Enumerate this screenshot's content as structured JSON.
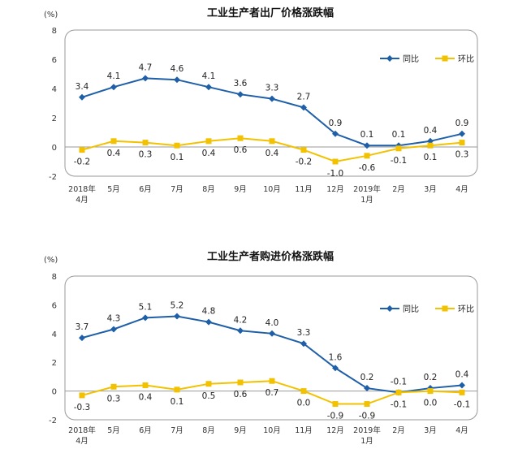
{
  "charts": [
    {
      "type": "line",
      "title": "工业生产者出厂价格涨跌幅",
      "unit": "(%)",
      "ylim": [
        -2,
        8
      ],
      "yticks": [
        -2,
        0,
        2,
        4,
        6,
        8
      ],
      "grid": false,
      "legend_position": "top-right",
      "categories": [
        "2018年\n4月",
        "5月",
        "6月",
        "7月",
        "8月",
        "9月",
        "10月",
        "11月",
        "12月",
        "2019年\n1月",
        "2月",
        "3月",
        "4月"
      ],
      "series": [
        {
          "name": "同比",
          "color": "#1f5fa8",
          "marker": "diamond",
          "values": [
            3.4,
            4.1,
            4.7,
            4.6,
            4.1,
            3.6,
            3.3,
            2.7,
            0.9,
            0.1,
            0.1,
            0.4,
            0.9
          ],
          "labels": [
            "3.4",
            "4.1",
            "4.7",
            "4.6",
            "4.1",
            "3.6",
            "3.3",
            "2.7",
            "0.9",
            "0.1",
            "0.1",
            "0.4",
            "0.9"
          ]
        },
        {
          "name": "环比",
          "color": "#f2c200",
          "marker": "square",
          "values": [
            -0.2,
            0.4,
            0.3,
            0.1,
            0.4,
            0.6,
            0.4,
            -0.2,
            -1.0,
            -0.6,
            -0.1,
            0.1,
            0.3
          ],
          "labels": [
            "-0.2",
            "0.4",
            "0.3",
            "0.1",
            "0.4",
            "0.6",
            "0.4",
            "-0.2",
            "-1.0",
            "-0.6",
            "-0.1",
            "0.1",
            "0.3"
          ]
        }
      ]
    },
    {
      "type": "line",
      "title": "工业生产者购进价格涨跌幅",
      "unit": "(%)",
      "ylim": [
        -2,
        8
      ],
      "yticks": [
        -2,
        0,
        2,
        4,
        6,
        8
      ],
      "grid": false,
      "legend_position": "top-right",
      "categories": [
        "2018年\n4月",
        "5月",
        "6月",
        "7月",
        "8月",
        "9月",
        "10月",
        "11月",
        "12月",
        "2019年\n1月",
        "2月",
        "3月",
        "4月"
      ],
      "series": [
        {
          "name": "同比",
          "color": "#1f5fa8",
          "marker": "diamond",
          "values": [
            3.7,
            4.3,
            5.1,
            5.2,
            4.8,
            4.2,
            4.0,
            3.3,
            1.6,
            0.2,
            -0.1,
            0.2,
            0.4
          ],
          "labels": [
            "3.7",
            "4.3",
            "5.1",
            "5.2",
            "4.8",
            "4.2",
            "4.0",
            "3.3",
            "1.6",
            "0.2",
            "-0.1",
            "0.2",
            "0.4"
          ]
        },
        {
          "name": "环比",
          "color": "#f2c200",
          "marker": "square",
          "values": [
            -0.3,
            0.3,
            0.4,
            0.1,
            0.5,
            0.6,
            0.7,
            0.0,
            -0.9,
            -0.9,
            -0.1,
            0.0,
            -0.1
          ],
          "labels": [
            "-0.3",
            "0.3",
            "0.4",
            "0.1",
            "0.5",
            "0.6",
            "0.7",
            "0.0",
            "-0.9",
            "-0.9",
            "-0.1",
            "0.0",
            "-0.1"
          ]
        }
      ]
    }
  ]
}
